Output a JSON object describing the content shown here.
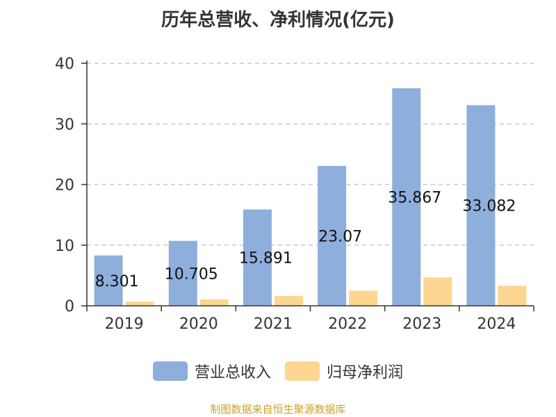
{
  "title": "历年总营收、净利情况(亿元)",
  "source": "制图数据来自恒生聚源数据库",
  "chart_data": {
    "type": "bar",
    "categories": [
      "2019",
      "2020",
      "2021",
      "2022",
      "2023",
      "2024"
    ],
    "series": [
      {
        "name": "营业总收入",
        "color": "#8eaedc",
        "values": [
          8.301,
          10.705,
          15.891,
          23.07,
          35.867,
          33.082
        ],
        "labels": [
          "8.301",
          "10.705",
          "15.891",
          "23.07",
          "35.867",
          "33.082"
        ]
      },
      {
        "name": "归母净利润",
        "color": "#fdd792",
        "values": [
          0.7,
          1.05,
          1.6,
          2.5,
          4.7,
          3.3
        ]
      }
    ],
    "ylim": [
      0,
      40
    ],
    "yticks": [
      "0",
      "10",
      "20",
      "30",
      "40"
    ],
    "grid": true,
    "legend_position": "bottom"
  }
}
